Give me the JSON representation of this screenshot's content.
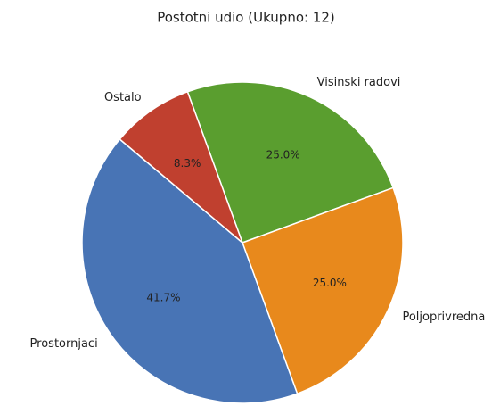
{
  "chart_data": {
    "type": "pie",
    "title": "Postotni udio (Ukupno: 12)",
    "categories": [
      "Visinski radovi",
      "Poljoprivredna",
      "Prostornjaci",
      "Ostalo"
    ],
    "values": [
      25.0,
      25.0,
      41.7,
      8.3
    ],
    "value_labels": [
      "25.0%",
      "25.0%",
      "41.7%",
      "8.3%"
    ],
    "colors": [
      "#5a9e2f",
      "#e8891c",
      "#4874b5",
      "#c0402f"
    ]
  }
}
